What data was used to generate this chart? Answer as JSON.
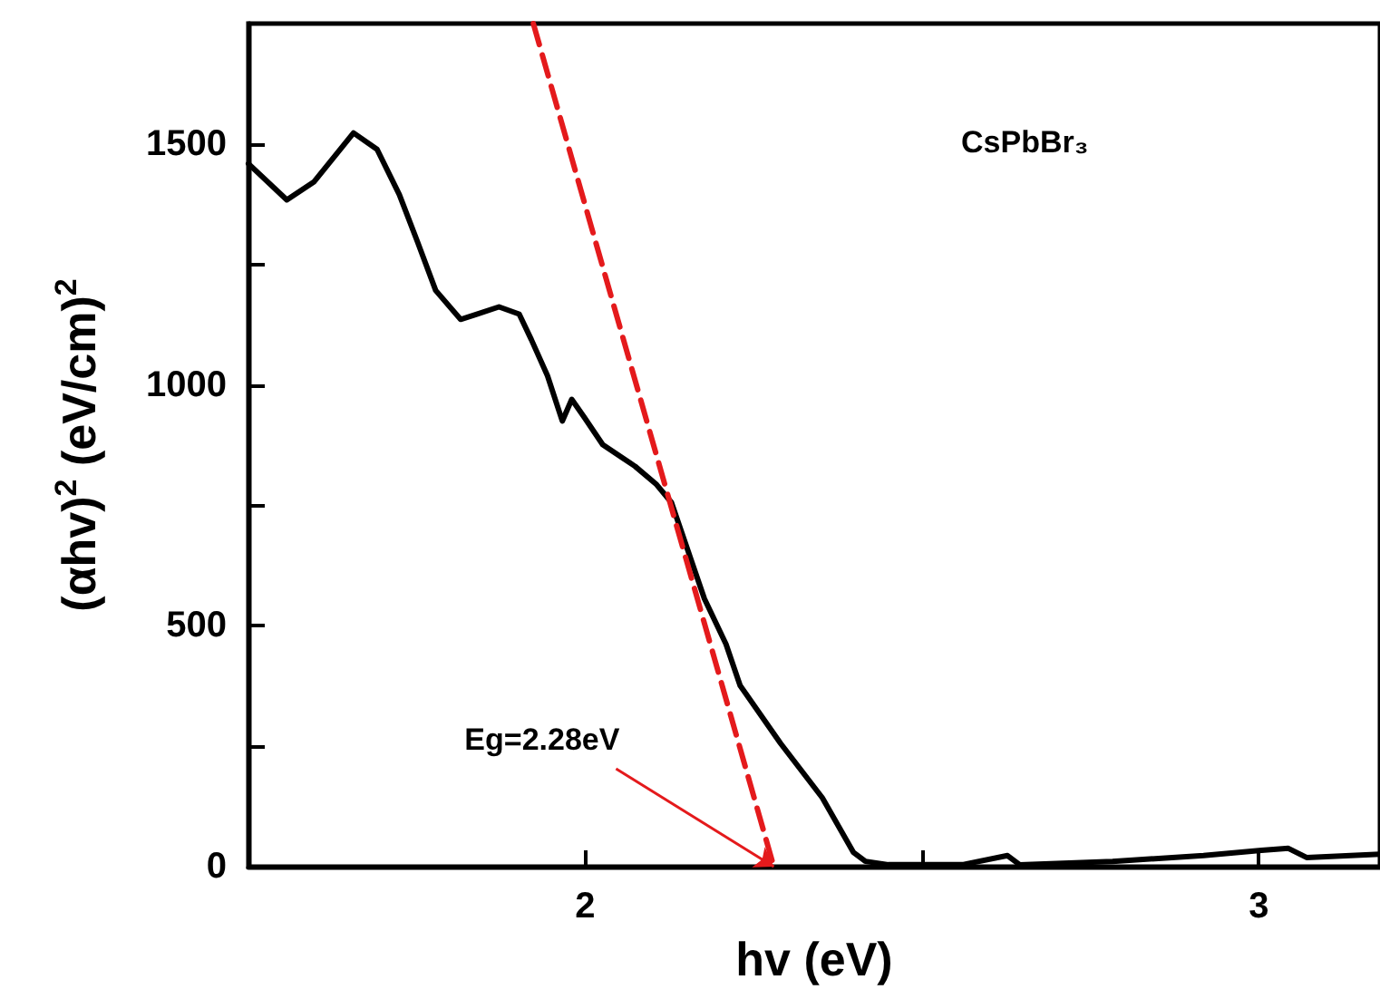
{
  "chart_data": {
    "type": "line",
    "xlabel": "hv (eV)",
    "ylabel": "(αhv)$^{2}$ (eV/cm)$^{2}$",
    "xlim": [
      1.5,
      3.18
    ],
    "ylim": [
      0,
      1750
    ],
    "xticks": [
      2,
      {
        "value": 2.5,
        "label": null
      },
      3
    ],
    "yticks": [
      0,
      {
        "value": 250,
        "label": null
      },
      500,
      {
        "value": 750,
        "label": null
      },
      1000,
      {
        "value": 1250,
        "label": null
      },
      1500
    ],
    "marker": "none",
    "line_style": "solid",
    "series": [
      {
        "color": "#000000",
        "x": [
          1.5,
          1.557,
          1.597,
          1.656,
          1.691,
          1.724,
          1.751,
          1.778,
          1.815,
          1.84,
          1.872,
          1.902,
          1.92,
          1.944,
          1.966,
          1.98,
          1.999,
          2.026,
          2.074,
          2.106,
          2.128,
          2.177,
          2.209,
          2.23,
          2.29,
          2.352,
          2.398,
          2.416,
          2.45,
          2.56,
          2.627,
          2.645,
          2.783,
          2.918,
          3.004,
          3.044,
          3.071,
          3.18
        ],
        "values": [
          1459,
          1384,
          1421,
          1523,
          1489,
          1395,
          1297,
          1196,
          1136,
          1147,
          1162,
          1147,
          1094,
          1019,
          925,
          970,
          932,
          876,
          831,
          793,
          756,
          556,
          462,
          376,
          256,
          143,
          30,
          11,
          4,
          4,
          23,
          4,
          11,
          23,
          34,
          38,
          19,
          26
        ]
      },
      {
        "color": "#e41a1c",
        "line_style": "dashed",
        "x": [
          1.923,
          2.28
        ],
        "values": [
          1750,
          0
        ]
      }
    ],
    "annotations": [
      "CsPbBr₃",
      {
        "text": "Eg=2.28eV",
        "x": 2.28,
        "y": 0
      }
    ]
  }
}
